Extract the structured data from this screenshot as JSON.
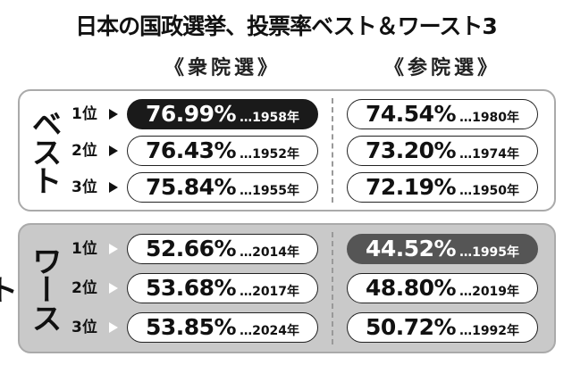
{
  "title": "日本の国政選挙、投票率ベスト＆ワースト3",
  "columns": [
    "《衆院選》",
    "《参院選》"
  ],
  "sections": [
    {
      "label": "ベスト",
      "background": "#ffffff",
      "rows": [
        {
          "rank": "1位",
          "shugiin": {
            "rate": "76.99%",
            "year": "…1958年",
            "fill": "#1a1a1a"
          },
          "sangiin": {
            "rate": "74.54%",
            "year": "…1980年"
          }
        },
        {
          "rank": "2位",
          "shugiin": {
            "rate": "76.43%",
            "year": "…1952年"
          },
          "sangiin": {
            "rate": "73.20%",
            "year": "…1974年"
          }
        },
        {
          "rank": "3位",
          "shugiin": {
            "rate": "75.84%",
            "year": "…1955年"
          },
          "sangiin": {
            "rate": "72.19%",
            "year": "…1950年"
          }
        }
      ]
    },
    {
      "label": "ワースト",
      "background": "#c9c9c9",
      "rows": [
        {
          "rank": "1位",
          "shugiin": {
            "rate": "52.66%",
            "year": "…2014年"
          },
          "sangiin": {
            "rate": "44.52%",
            "year": "…1995年",
            "fill": "#555555"
          }
        },
        {
          "rank": "2位",
          "shugiin": {
            "rate": "53.68%",
            "year": "…2017年"
          },
          "sangiin": {
            "rate": "48.80%",
            "year": "…2019年"
          }
        },
        {
          "rank": "3位",
          "shugiin": {
            "rate": "53.85%",
            "year": "…2024年"
          },
          "sangiin": {
            "rate": "50.72%",
            "year": "…1992年"
          }
        }
      ]
    }
  ]
}
